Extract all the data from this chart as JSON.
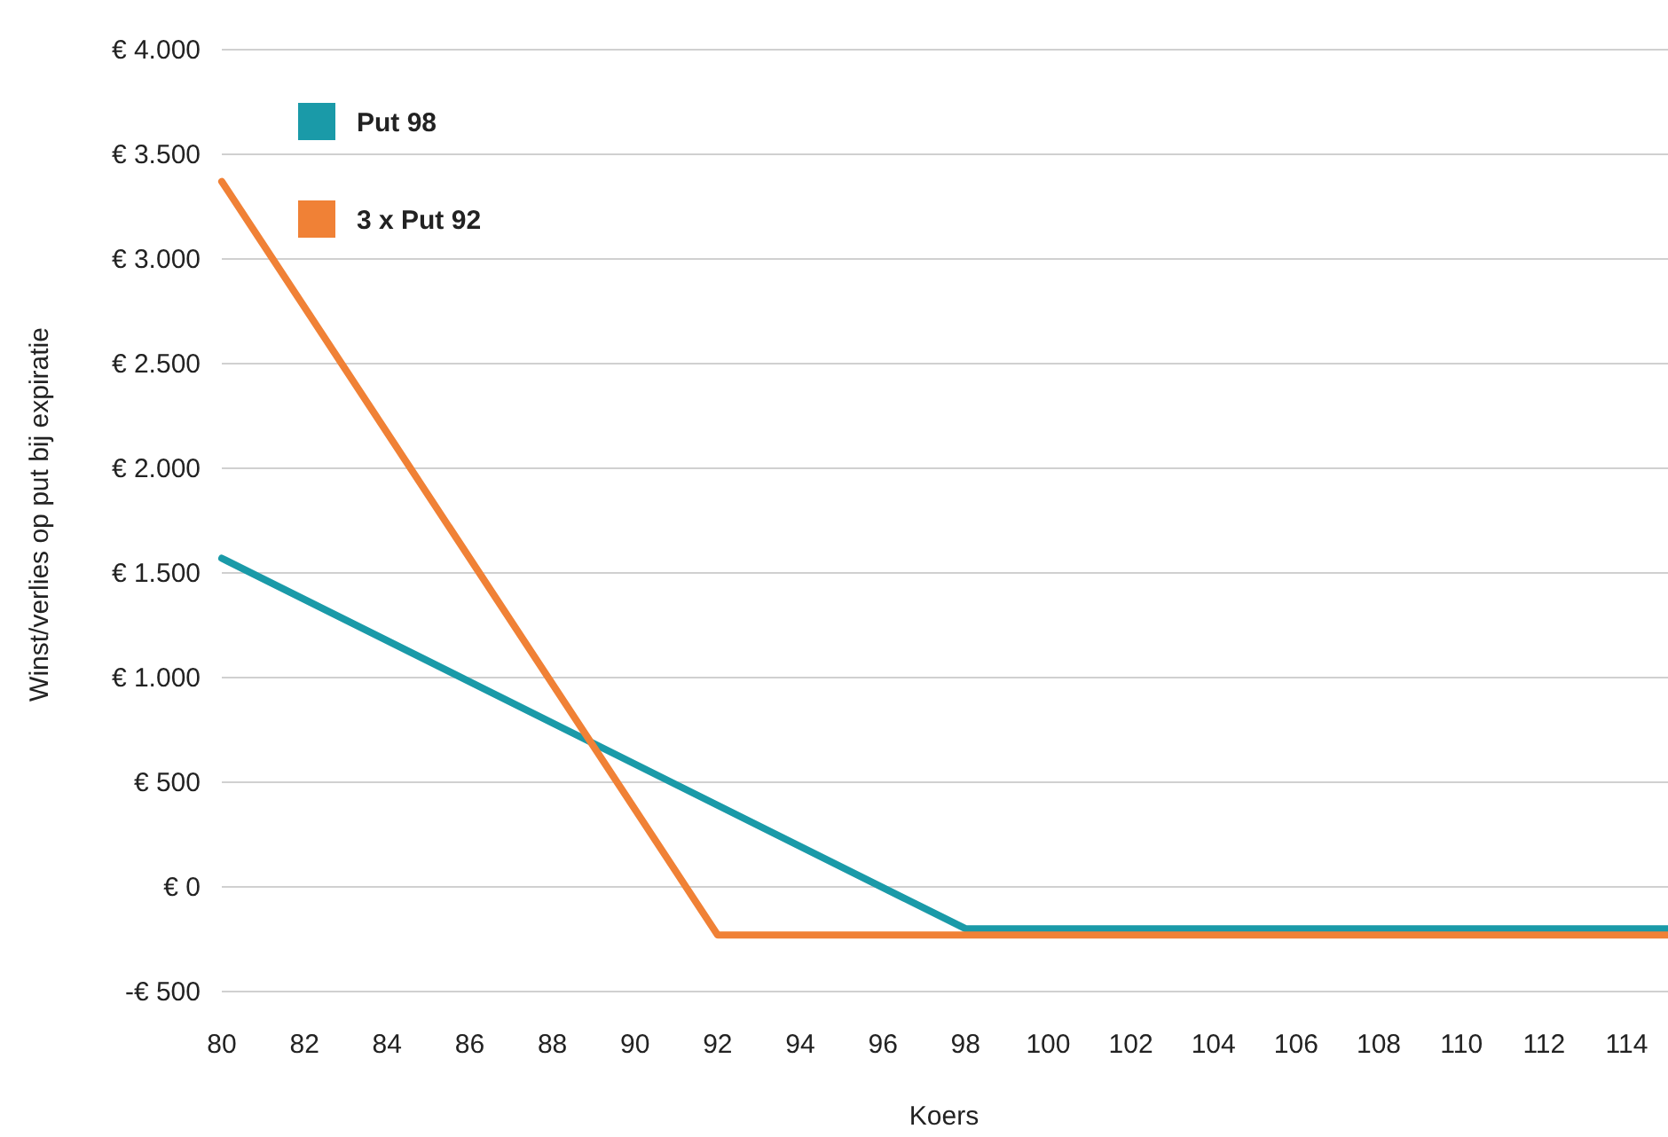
{
  "chart_data": {
    "type": "line",
    "xlabel": "Koers",
    "ylabel": "Winst/verlies op put bij expiratie",
    "xlim": [
      80,
      115
    ],
    "xticks": [
      80,
      82,
      84,
      86,
      88,
      90,
      92,
      94,
      96,
      98,
      100,
      102,
      104,
      106,
      108,
      110,
      112,
      114
    ],
    "ylim": [
      -500,
      4000
    ],
    "yticks": [
      {
        "value": -500,
        "label": "-€ 500"
      },
      {
        "value": 0,
        "label": "€ 0"
      },
      {
        "value": 500,
        "label": "€ 500"
      },
      {
        "value": 1000,
        "label": "€ 1.000"
      },
      {
        "value": 1500,
        "label": "€ 1.500"
      },
      {
        "value": 2000,
        "label": "€ 2.000"
      },
      {
        "value": 2500,
        "label": "€ 2.500"
      },
      {
        "value": 3000,
        "label": "€ 3.000"
      },
      {
        "value": 3500,
        "label": "€ 3.500"
      },
      {
        "value": 4000,
        "label": "€ 4.000"
      }
    ],
    "grid": "y",
    "legend": "top left",
    "marker": "none",
    "line_style": "solid",
    "series": [
      {
        "name": "Put 98",
        "color": "#1a9aa8",
        "x": [
          80,
          98,
          115
        ],
        "values": [
          1570,
          -200,
          -200
        ]
      },
      {
        "name": "3 x Put 92",
        "color": "#f08136",
        "x": [
          80,
          92,
          115
        ],
        "values": [
          3370,
          -230,
          -230
        ]
      }
    ]
  }
}
